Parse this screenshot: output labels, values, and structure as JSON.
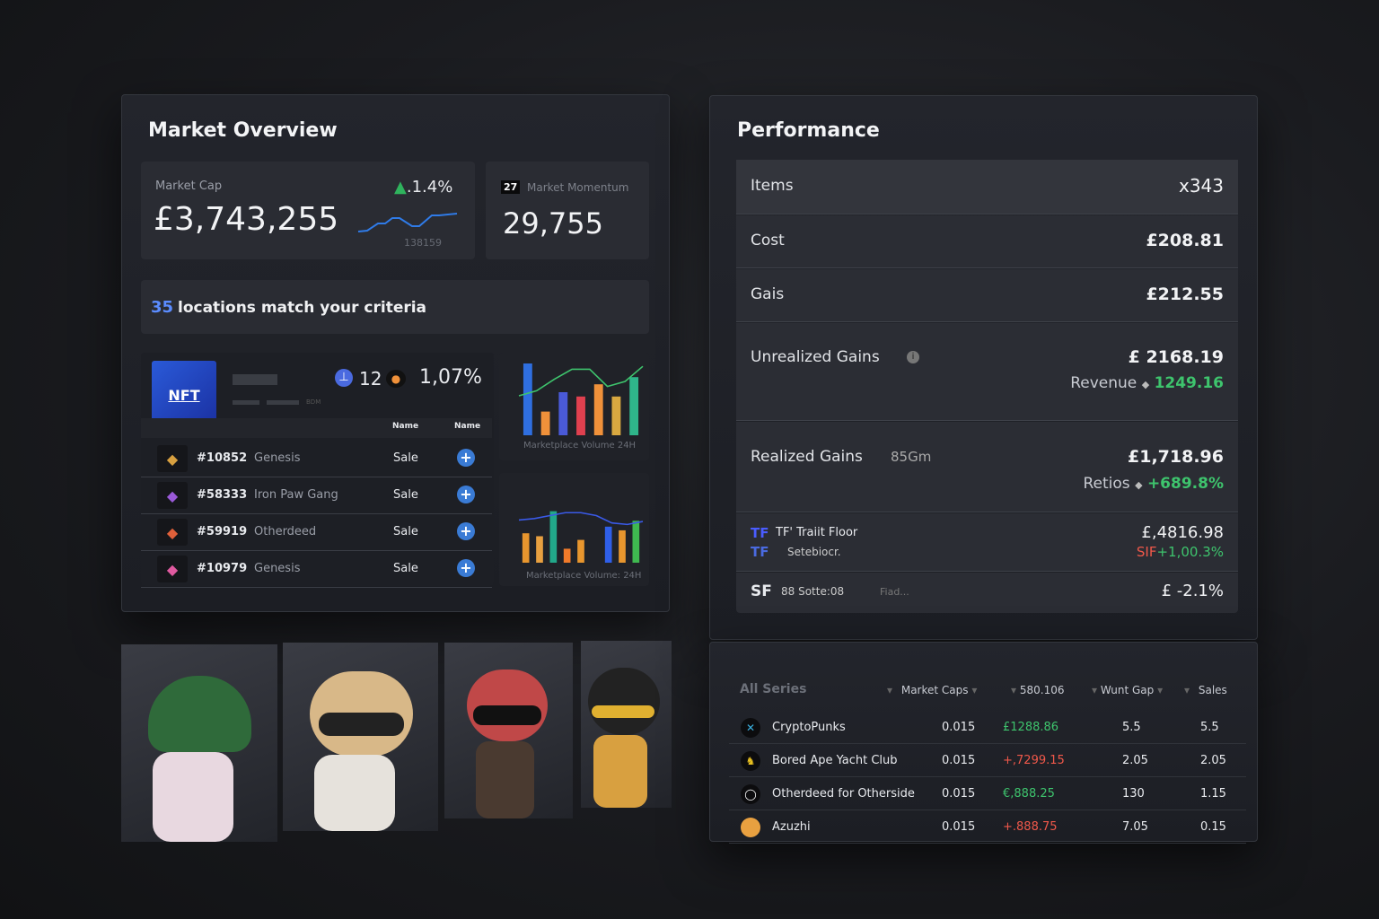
{
  "overview": {
    "title": "Market Overview",
    "market_cap": {
      "label": "Market Cap",
      "value": "£3,743,255",
      "change": ".1.4%",
      "sparkline_label": "138159"
    },
    "momentum": {
      "badge": "27",
      "label": "Market Momentum",
      "value": "29,755"
    },
    "criteria": {
      "count": "35",
      "text": "locations match your criteria"
    },
    "collection": {
      "logo_text": "NFT",
      "count": "12",
      "percent": "1,07%",
      "sub": "BDM",
      "col1": "Name",
      "col2": "Name"
    },
    "items": [
      {
        "id": "#10852",
        "name": "Genesis",
        "status": "Sale"
      },
      {
        "id": "#58333",
        "name": "Iron Paw Gang",
        "status": "Sale"
      },
      {
        "id": "#59919",
        "name": "Otherdeed",
        "status": "Sale"
      },
      {
        "id": "#10979",
        "name": "Genesis",
        "status": "Sale"
      }
    ]
  },
  "chart_data": [
    {
      "type": "bar",
      "title": "Marketplace Volume 24H",
      "values": [
        100,
        33,
        60,
        54,
        71,
        54,
        81
      ],
      "colors": [
        "#2f6fe0",
        "#f0913a",
        "#4a5ad8",
        "#e0404f",
        "#f0913a",
        "#d8a840",
        "#2fb58a"
      ],
      "line": [
        55,
        62,
        78,
        92,
        92,
        68,
        75,
        96
      ],
      "ylim": [
        0,
        100
      ]
    },
    {
      "type": "bar",
      "title": "Marketplace Volume: 24H",
      "values": [
        40,
        36,
        70,
        19,
        31,
        0,
        49,
        44,
        57
      ],
      "colors": [
        "#e8962e",
        "#e8a040",
        "#22a88a",
        "#f07a2a",
        "#e8962e",
        "#2f6fe0",
        "#2f5fe8",
        "#e8962e",
        "#3fb850"
      ],
      "line": [
        58,
        60,
        64,
        68,
        68,
        64,
        54,
        52,
        56
      ],
      "ylim": [
        0,
        100
      ]
    }
  ],
  "performance": {
    "title": "Performance",
    "items": {
      "label": "Items",
      "value": "x343"
    },
    "cost": {
      "label": "Cost",
      "value": "£208.81"
    },
    "gais": {
      "label": "Gais",
      "value": "£212.55"
    },
    "unrealized": {
      "label": "Unrealized Gains",
      "value": "£ 2168.19",
      "sub_label": "Revenue",
      "sub_value": "1249.16"
    },
    "realized": {
      "label": "Realized Gains",
      "extra": "85Gm",
      "value": "£1,718.96",
      "sub_label": "Retios",
      "sub_value": "+689.8%"
    },
    "trait": {
      "badge": "TF",
      "label": "TF' Traiit Floor",
      "badge2": "TF",
      "label2": "Setebiocr.",
      "value": "£,4816.98",
      "prefix": "SIF",
      "change": "+1,00.3%"
    },
    "sf": {
      "badge": "SF",
      "label": "88 Sotte:08",
      "hint": "Fiad...",
      "value": "£ -2.1%"
    }
  },
  "table": {
    "headers": [
      "All Series",
      "Market Caps",
      "580.106",
      "Wunt Gap",
      "Sales"
    ],
    "rows": [
      {
        "name": "CryptoPunks",
        "cap": "0.015",
        "price": "£1288.86",
        "gap": "5.5",
        "sales": "5.5",
        "up": true
      },
      {
        "name": "Bored Ape Yacht Club",
        "cap": "0.015",
        "price": "+,7299.15",
        "gap": "2.05",
        "sales": "2.05",
        "up": false
      },
      {
        "name": "Otherdeed for Otherside",
        "cap": "0.015",
        "price": "€,888.25",
        "gap": "130",
        "sales": "1.15",
        "up": true
      },
      {
        "name": "Azuzhi",
        "cap": "0.015",
        "price": "+.888.75",
        "gap": "7.05",
        "sales": "0.15",
        "up": false
      }
    ]
  }
}
